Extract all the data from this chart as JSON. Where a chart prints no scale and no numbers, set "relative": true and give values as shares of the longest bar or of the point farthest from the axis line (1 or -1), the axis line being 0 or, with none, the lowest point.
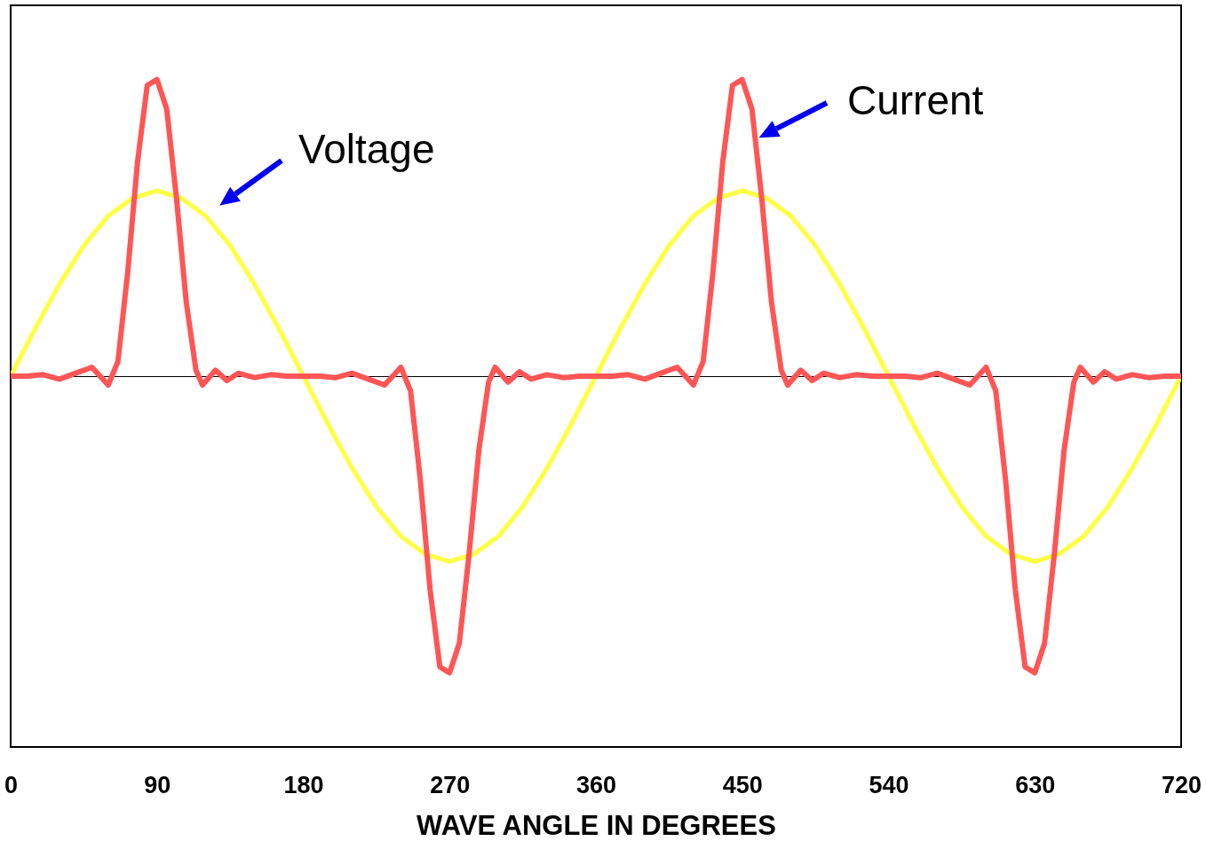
{
  "chart_data": {
    "type": "line",
    "relative": true,
    "xlabel": "WAVE ANGLE IN DEGREES",
    "xlim": [
      0,
      720
    ],
    "xticks": [
      0,
      90,
      180,
      270,
      360,
      450,
      540,
      630,
      720
    ],
    "tick_labels": "x",
    "series": [
      {
        "color": "#ffff44",
        "x": [
          0,
          15,
          30,
          45,
          60,
          75,
          90,
          105,
          120,
          135,
          150,
          165,
          180,
          195,
          210,
          225,
          240,
          255,
          270,
          285,
          300,
          315,
          330,
          345,
          360,
          375,
          390,
          405,
          420,
          435,
          450,
          465,
          480,
          495,
          510,
          525,
          540,
          555,
          570,
          585,
          600,
          615,
          630,
          645,
          660,
          675,
          690,
          705,
          720
        ],
        "values": [
          0,
          0.16,
          0.31,
          0.44,
          0.54,
          0.6,
          0.625,
          0.6,
          0.54,
          0.44,
          0.31,
          0.16,
          0,
          -0.16,
          -0.31,
          -0.44,
          -0.54,
          -0.6,
          -0.625,
          -0.6,
          -0.54,
          -0.44,
          -0.31,
          -0.16,
          0,
          0.16,
          0.31,
          0.44,
          0.54,
          0.6,
          0.625,
          0.6,
          0.54,
          0.44,
          0.31,
          0.16,
          0,
          -0.16,
          -0.31,
          -0.44,
          -0.54,
          -0.6,
          -0.625,
          -0.6,
          -0.54,
          -0.44,
          -0.31,
          -0.16,
          0
        ]
      },
      {
        "color": "#ff5555",
        "x": [
          0,
          10,
          20,
          30,
          40,
          50,
          60,
          66,
          72,
          78,
          84,
          90,
          96,
          102,
          108,
          114,
          118,
          126,
          133,
          140,
          150,
          160,
          170,
          180,
          190,
          200,
          210,
          220,
          230,
          240,
          246,
          252,
          258,
          264,
          270,
          276,
          282,
          288,
          294,
          298,
          306,
          313,
          320,
          330,
          340,
          350,
          360,
          370,
          380,
          390,
          400,
          410,
          420,
          426,
          432,
          438,
          444,
          450,
          456,
          462,
          468,
          474,
          478,
          486,
          493,
          500,
          510,
          520,
          530,
          540,
          550,
          560,
          570,
          580,
          590,
          600,
          606,
          612,
          618,
          624,
          630,
          636,
          642,
          648,
          654,
          658,
          666,
          673,
          680,
          690,
          700,
          710,
          720
        ],
        "values": [
          0,
          0,
          0.005,
          -0.01,
          0.01,
          0.03,
          -0.03,
          0.05,
          0.35,
          0.72,
          0.98,
          1,
          0.9,
          0.6,
          0.25,
          0.02,
          -0.03,
          0.02,
          -0.015,
          0.01,
          -0.005,
          0.005,
          0,
          0,
          0,
          -0.005,
          0.01,
          -0.01,
          -0.03,
          0.03,
          -0.05,
          -0.35,
          -0.72,
          -0.98,
          -1,
          -0.9,
          -0.6,
          -0.25,
          -0.02,
          0.03,
          -0.02,
          0.015,
          -0.01,
          0.005,
          -0.005,
          0,
          0,
          0,
          0.005,
          -0.01,
          0.01,
          0.03,
          -0.03,
          0.05,
          0.35,
          0.72,
          0.98,
          1,
          0.9,
          0.6,
          0.25,
          0.02,
          -0.03,
          0.02,
          -0.015,
          0.01,
          -0.005,
          0.005,
          0,
          0,
          0,
          -0.005,
          0.01,
          -0.01,
          -0.03,
          0.03,
          -0.05,
          -0.35,
          -0.72,
          -0.98,
          -1,
          -0.9,
          -0.6,
          -0.25,
          -0.02,
          0.03,
          -0.02,
          0.015,
          -0.01,
          0.005,
          -0.005,
          0,
          0
        ]
      }
    ],
    "annotations": [
      "Voltage",
      "Current"
    ]
  }
}
